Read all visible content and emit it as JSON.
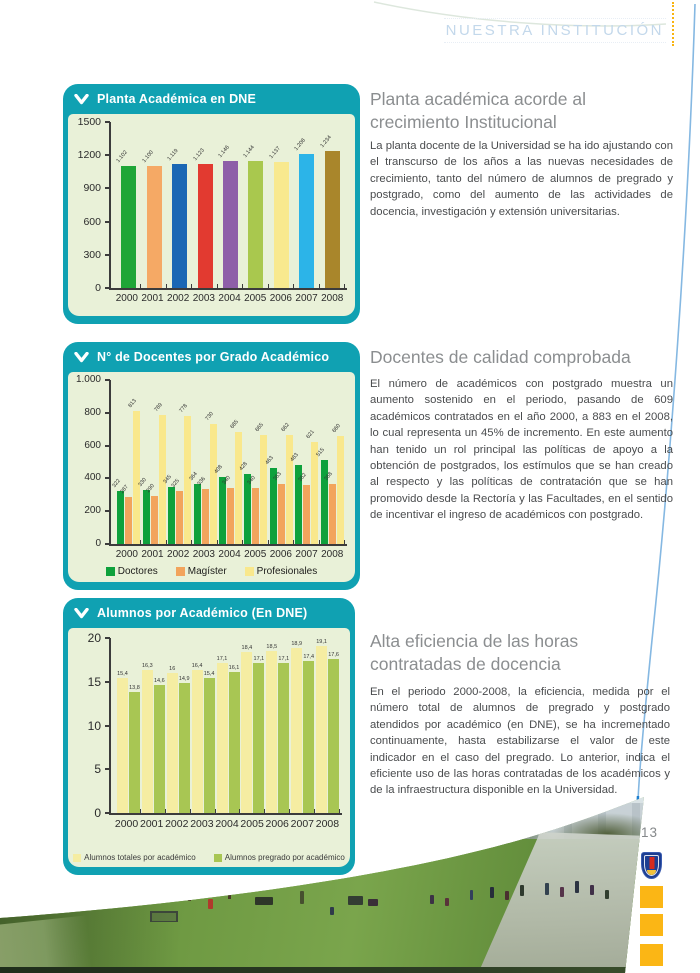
{
  "page": {
    "header": "NUESTRA INSTITUCIÓN",
    "number": "13"
  },
  "colors": {
    "teal": "#10a1b2",
    "panel_bg": "#e9f1d8",
    "accent_orange": "#fbb615",
    "header_text": "#c3d8eb",
    "line_blue": "#1d7fd0"
  },
  "sections": [
    {
      "heading": "Planta académica acorde al crecimiento Institucional",
      "body": "La planta docente de la Universidad se ha ido ajustando con el transcurso de los años a las nuevas necesidades de crecimiento, tanto del número de alumnos de pregrado y postgrado, como del aumento de las actividades de docencia, investigación y extensión universitarias."
    },
    {
      "heading": "Docentes de calidad comprobada",
      "body": "El número de académicos con postgrado muestra un aumento sostenido en el periodo, pasando de 609 académicos contratados en el año 2000, a 883 en el 2008, lo cual representa un 45% de incremento. En este aumento han tenido un rol principal las políticas de apoyo a la obtención de postgrados, los estímulos que se han creado al respecto y las políticas de contratación que se han promovido desde la Rectoría y las Facultades, en el sentido de incentivar el ingreso de académicos con postgrado."
    },
    {
      "heading": "Alta eficiencia de las horas contratadas de docencia",
      "body": "En el periodo 2000-2008, la eficiencia, medida por el número total de alumnos de pregrado y postgrado atendidos por académico (en DNE), se ha incrementado continuamente, hasta estabilizarse el valor de este indicador en el caso del pregrado. Lo anterior, indica el eficiente uso de las horas contratadas de los académicos y de la infraestructura disponible en la Universidad."
    }
  ],
  "chart_data": [
    {
      "type": "bar",
      "title": "Planta Académica en DNE",
      "categories": [
        "2000",
        "2001",
        "2002",
        "2003",
        "2004",
        "2005",
        "2006",
        "2007",
        "2008"
      ],
      "values": [
        1102,
        1100,
        1119,
        1123,
        1146,
        1144,
        1137,
        1208,
        1234
      ],
      "labels": [
        "1.102",
        "1.100",
        "1.119",
        "1.123",
        "1.146",
        "1.144",
        "1.137",
        "1.208",
        "1.234"
      ],
      "bar_colors": [
        "#1fa637",
        "#f5a965",
        "#1a67b4",
        "#e23a30",
        "#8e5fa8",
        "#a9c84e",
        "#f8e98e",
        "#2cb4e8",
        "#a9862b"
      ],
      "ylim": [
        0,
        1500
      ],
      "yticks": [
        "1500",
        "1200",
        "900",
        "600",
        "300",
        "0"
      ],
      "grid": false,
      "legend_position": "none"
    },
    {
      "type": "bar",
      "title": "N° de Docentes por Grado Académico",
      "categories": [
        "2000",
        "2001",
        "2002",
        "2003",
        "2004",
        "2005",
        "2006",
        "2007",
        "2008"
      ],
      "series": [
        {
          "name": "Doctores",
          "color": "#0ea13c",
          "values": [
            322,
            330,
            345,
            364,
            408,
            428,
            463,
            483,
            515
          ],
          "labels": [
            "322",
            "330",
            "345",
            "364",
            "408",
            "428",
            "463",
            "483",
            "515"
          ]
        },
        {
          "name": "Magíster",
          "color": "#f2a45c",
          "values": [
            287,
            290,
            325,
            336,
            340,
            340,
            363,
            362,
            368
          ],
          "labels": [
            "287",
            "290",
            "325",
            "336",
            "340",
            "340",
            "363",
            "362",
            "368"
          ]
        },
        {
          "name": "Profesionales",
          "color": "#f9e88c",
          "values": [
            813,
            789,
            778,
            730,
            685,
            665,
            662,
            621,
            660
          ],
          "labels": [
            "813",
            "789",
            "778",
            "730",
            "685",
            "665",
            "662",
            "621",
            "660"
          ]
        }
      ],
      "ylim": [
        0,
        1000
      ],
      "yticks": [
        "1.000",
        "800",
        "600",
        "400",
        "200",
        "0"
      ],
      "grid": false,
      "legend_position": "bottom"
    },
    {
      "type": "bar",
      "title": "Alumnos por Académico (En DNE)",
      "categories": [
        "2000",
        "2001",
        "2002",
        "2003",
        "2004",
        "2005",
        "2006",
        "2007",
        "2008"
      ],
      "series": [
        {
          "name": "Alumnos totales por académico",
          "color": "#f5eda2",
          "values": [
            15.4,
            16.3,
            16,
            16.4,
            17.1,
            18.4,
            18.5,
            18.9,
            19.1
          ],
          "labels": [
            "15,4",
            "16,3",
            "16",
            "16,4",
            "17,1",
            "18,4",
            "18,5",
            "18,9",
            "19,1"
          ]
        },
        {
          "name": "Alumnos pregrado por académico",
          "color": "#a8c653",
          "values": [
            13.8,
            14.6,
            14.9,
            15.4,
            16.1,
            17.1,
            17.1,
            17.4,
            17.6
          ],
          "labels": [
            "13,8",
            "14,6",
            "14,9",
            "15,4",
            "16,1",
            "17,1",
            "17,1",
            "17,4",
            "17,6"
          ]
        }
      ],
      "ylim": [
        0,
        20
      ],
      "yticks": [
        "20",
        "15",
        "10",
        "5",
        "0"
      ],
      "grid": false,
      "legend_position": "bottom"
    }
  ]
}
